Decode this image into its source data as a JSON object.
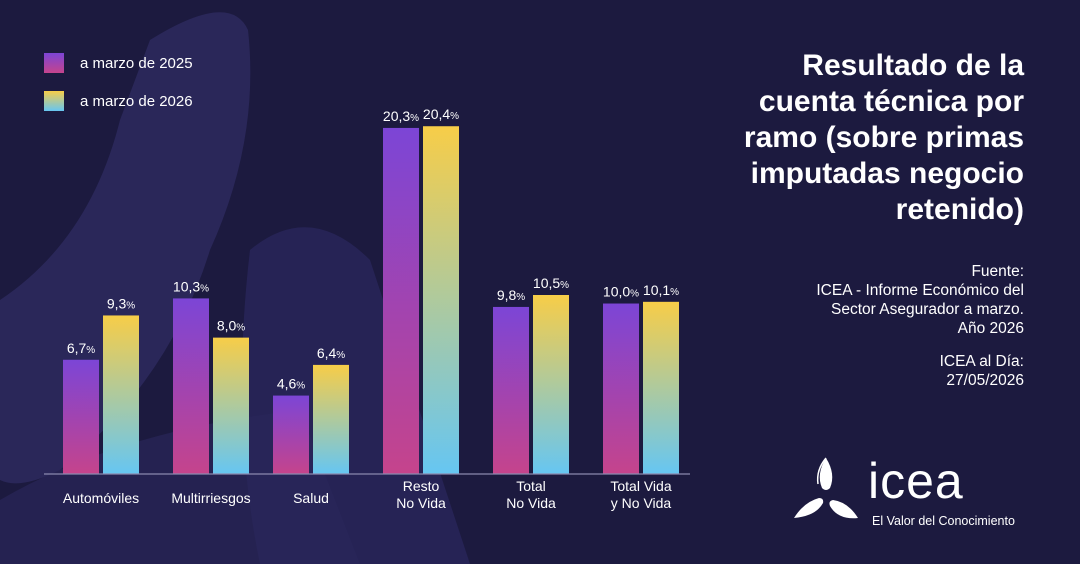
{
  "chart_data": {
    "type": "bar",
    "title": "Resultado de la cuenta técnica por ramo (sobre primas imputadas negocio retenido)",
    "unit": "%",
    "categories": [
      [
        "Automóviles"
      ],
      [
        "Multirriesgos"
      ],
      [
        "Salud"
      ],
      [
        "Resto",
        "No Vida"
      ],
      [
        "Total",
        "No Vida"
      ],
      [
        "Total Vida",
        "y No Vida"
      ]
    ],
    "series": [
      {
        "name": "a marzo de 2025",
        "values": [
          6.7,
          10.3,
          4.6,
          20.3,
          9.8,
          10.0
        ],
        "labels": [
          "6,7",
          "10,3",
          "4,6",
          "20,3",
          "9,8",
          "10,0"
        ],
        "colors": [
          "#7c45d6",
          "#c5448c"
        ]
      },
      {
        "name": "a marzo de 2026",
        "values": [
          9.3,
          8.0,
          6.4,
          20.4,
          10.5,
          10.1
        ],
        "labels": [
          "9,3",
          "8,0",
          "6,4",
          "20,4",
          "10,5",
          "10,1"
        ],
        "colors": [
          "#f7cd48",
          "#66c6f2"
        ]
      }
    ],
    "ylim": [
      0,
      21
    ]
  },
  "title_lines": [
    "Resultado de la",
    "cuenta técnica por",
    "ramo (sobre primas",
    "imputadas negocio",
    "retenido)"
  ],
  "source": {
    "label": "Fuente:",
    "lines": [
      "ICEA - Informe Económico del",
      "Sector Asegurador a marzo.",
      "Año 2026"
    ],
    "date_label": "ICEA al Día:",
    "date": "27/05/2026"
  },
  "logo": {
    "name": "icea",
    "tagline": "El Valor del Conocimiento",
    "icon": "icea-triskelion-icon"
  },
  "colors": {
    "background": "#1c1a3f",
    "shape": "#2f2c63"
  }
}
